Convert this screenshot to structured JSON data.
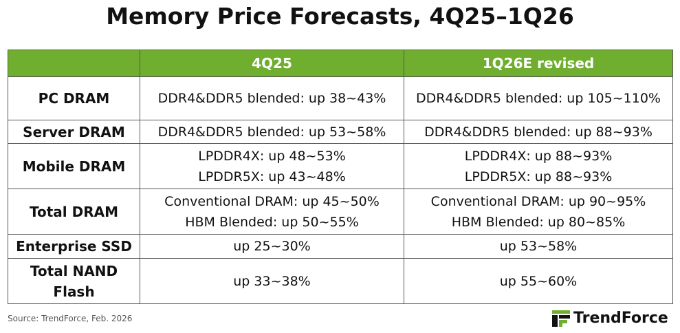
{
  "title": "Memory Price Forecasts, 4Q25–1Q26",
  "table": {
    "header": [
      "4Q25",
      "1Q26E revised"
    ],
    "rows": [
      [
        [
          "PC DRAM"
        ],
        [
          "DDR4&DDR5 blended: up 38~43%"
        ],
        [
          "DDR4&DDR5 blended: up 105~110%"
        ]
      ],
      [
        [
          "Server DRAM"
        ],
        [
          "DDR4&DDR5 blended: up 53~58%"
        ],
        [
          "DDR4&DDR5 blended: up 88~93%"
        ]
      ],
      [
        [
          "Mobile DRAM"
        ],
        [
          "LPDDR4X: up 48~53%",
          "LPDDR5X: up 43~48%"
        ],
        [
          "LPDDR4X: up 88~93%",
          "LPDDR5X: up 88~93%"
        ]
      ],
      [
        [
          "Total DRAM"
        ],
        [
          "Conventional DRAM: up 45~50%",
          "HBM Blended: up 50~55%"
        ],
        [
          "Conventional DRAM: up 90~95%",
          "HBM Blended: up 80~85%"
        ]
      ],
      [
        [
          "Enterprise SSD"
        ],
        [
          "up 25~30%"
        ],
        [
          "up 53~58%"
        ]
      ],
      [
        [
          "Total NAND",
          "Flash"
        ],
        [
          "up 33~38%"
        ],
        [
          "up 55~60%"
        ]
      ]
    ]
  },
  "source": "Source: TrendForce, Feb. 2026",
  "logo": "TrendForce"
}
